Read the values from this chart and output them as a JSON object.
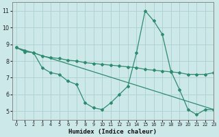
{
  "line1_x": [
    0,
    1,
    2,
    3,
    4,
    5,
    6,
    7,
    8,
    9,
    10,
    11,
    12,
    13,
    14,
    15,
    16,
    17,
    18,
    19,
    20,
    21,
    22,
    23
  ],
  "line1_y": [
    8.8,
    8.6,
    8.5,
    7.6,
    7.3,
    7.2,
    6.8,
    6.6,
    5.5,
    5.2,
    5.1,
    5.5,
    6.0,
    6.5,
    8.5,
    11.0,
    10.4,
    9.6,
    7.4,
    6.3,
    5.1,
    4.8,
    5.1,
    5.1
  ],
  "line2_x": [
    0,
    23
  ],
  "line2_y": [
    8.8,
    5.1
  ],
  "line3_x": [
    0,
    1,
    2,
    3,
    4,
    5,
    6,
    7,
    8,
    9,
    10,
    11,
    12,
    13,
    14,
    15,
    16,
    17,
    18,
    19,
    20,
    21,
    22,
    23
  ],
  "line3_y": [
    8.8,
    8.55,
    8.5,
    8.3,
    8.2,
    8.15,
    8.05,
    8.0,
    7.9,
    7.85,
    7.8,
    7.75,
    7.7,
    7.65,
    7.6,
    7.5,
    7.45,
    7.4,
    7.35,
    7.3,
    7.2,
    7.2,
    7.2,
    7.3
  ],
  "color": "#2e8b70",
  "bg_color": "#cce8e8",
  "grid_color": "#aad0d0",
  "xlabel": "Humidex (Indice chaleur)",
  "xlim": [
    -0.5,
    23
  ],
  "ylim": [
    4.5,
    11.5
  ],
  "yticks": [
    5,
    6,
    7,
    8,
    9,
    10,
    11
  ],
  "xticks": [
    0,
    1,
    2,
    3,
    4,
    5,
    6,
    7,
    8,
    9,
    10,
    11,
    12,
    13,
    14,
    15,
    16,
    17,
    18,
    19,
    20,
    21,
    22,
    23
  ]
}
